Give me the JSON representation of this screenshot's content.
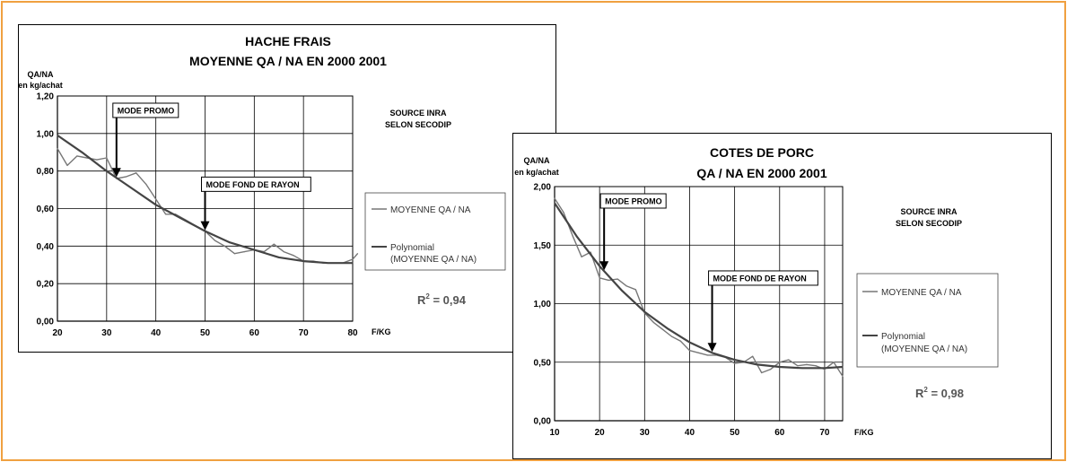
{
  "chart_data": [
    {
      "type": "line",
      "title": "HACHE FRAIS",
      "subtitle": "MOYENNE  QA / NA EN 2000 2001",
      "ylabel_line1": "QA/NA",
      "ylabel_line2": "en kg/achat",
      "xlabel": "F/KG",
      "xlim": [
        20,
        80
      ],
      "ylim": [
        0,
        1.2
      ],
      "xticks": [
        "20",
        "30",
        "40",
        "50",
        "60",
        "70",
        "80"
      ],
      "yticks": [
        "0,00",
        "0,20",
        "0,40",
        "0,60",
        "0,80",
        "1,00",
        "1,20"
      ],
      "grid": true,
      "source_line1": "SOURCE INRA",
      "source_line2": "SELON SECODIP",
      "r2_prefix": "R",
      "r2_exp": "2",
      "r2_suffix": " = 0,94",
      "legend_position": "right",
      "series": [
        {
          "name": "MOYENNE QA / NA",
          "color": "#777777",
          "x": [
            20,
            22,
            24,
            26,
            28,
            30,
            32,
            34,
            36,
            38,
            40,
            42,
            44,
            46,
            48,
            50,
            52,
            54,
            56,
            58,
            60,
            62,
            64,
            66,
            68,
            70,
            72,
            74,
            76,
            78,
            80,
            81
          ],
          "y": [
            0.92,
            0.83,
            0.88,
            0.87,
            0.86,
            0.87,
            0.76,
            0.77,
            0.79,
            0.73,
            0.65,
            0.57,
            0.57,
            0.54,
            0.51,
            0.48,
            0.43,
            0.4,
            0.36,
            0.37,
            0.38,
            0.37,
            0.41,
            0.37,
            0.35,
            0.32,
            0.32,
            0.31,
            0.31,
            0.31,
            0.33,
            0.36
          ]
        },
        {
          "name_line1": "Polynomial",
          "name_line2": "(MOYENNE QA / NA)",
          "color": "#444444",
          "x": [
            20,
            25,
            30,
            35,
            40,
            45,
            50,
            55,
            60,
            65,
            70,
            75,
            80
          ],
          "y": [
            0.99,
            0.9,
            0.8,
            0.71,
            0.62,
            0.55,
            0.48,
            0.42,
            0.38,
            0.34,
            0.32,
            0.31,
            0.31
          ]
        }
      ],
      "annotations": [
        {
          "label": "MODE PROMO",
          "x": 32
        },
        {
          "label": "MODE FOND DE RAYON",
          "x": 50
        }
      ]
    },
    {
      "type": "line",
      "title": "COTES DE PORC",
      "subtitle": "QA / NA    EN 2000 2001",
      "ylabel_line1": "QA/NA",
      "ylabel_line2": "en kg/achat",
      "xlabel": "F/KG",
      "xlim": [
        10,
        74
      ],
      "ylim": [
        0,
        2.0
      ],
      "xticks": [
        "10",
        "20",
        "30",
        "40",
        "50",
        "60",
        "70"
      ],
      "yticks": [
        "0,00",
        "0,50",
        "1,00",
        "1,50",
        "2,00"
      ],
      "grid": true,
      "source_line1": "SOURCE INRA",
      "source_line2": "SELON SECODIP",
      "r2_prefix": "R",
      "r2_exp": "2",
      "r2_suffix": " = 0,98",
      "legend_position": "right",
      "series": [
        {
          "name": "MOYENNE QA / NA",
          "color": "#777777",
          "x": [
            10,
            12,
            14,
            16,
            18,
            20,
            22,
            24,
            26,
            28,
            30,
            32,
            34,
            36,
            38,
            40,
            42,
            44,
            46,
            48,
            50,
            52,
            54,
            56,
            58,
            60,
            62,
            64,
            66,
            68,
            70,
            72,
            74
          ],
          "y": [
            1.9,
            1.78,
            1.58,
            1.4,
            1.44,
            1.22,
            1.2,
            1.21,
            1.15,
            1.12,
            0.92,
            0.84,
            0.78,
            0.72,
            0.68,
            0.6,
            0.58,
            0.56,
            0.56,
            0.54,
            0.49,
            0.5,
            0.55,
            0.41,
            0.44,
            0.5,
            0.52,
            0.47,
            0.48,
            0.47,
            0.44,
            0.5,
            0.38
          ]
        },
        {
          "name_line1": "Polynomial",
          "name_line2": "(MOYENNE QA / NA)",
          "color": "#444444",
          "x": [
            10,
            15,
            20,
            25,
            30,
            35,
            40,
            45,
            50,
            55,
            60,
            65,
            70,
            74
          ],
          "y": [
            1.86,
            1.57,
            1.32,
            1.11,
            0.93,
            0.79,
            0.67,
            0.58,
            0.52,
            0.48,
            0.46,
            0.45,
            0.45,
            0.46
          ]
        }
      ],
      "annotations": [
        {
          "label": "MODE PROMO",
          "x": 21
        },
        {
          "label": "MODE FOND DE RAYON",
          "x": 45
        }
      ]
    }
  ]
}
